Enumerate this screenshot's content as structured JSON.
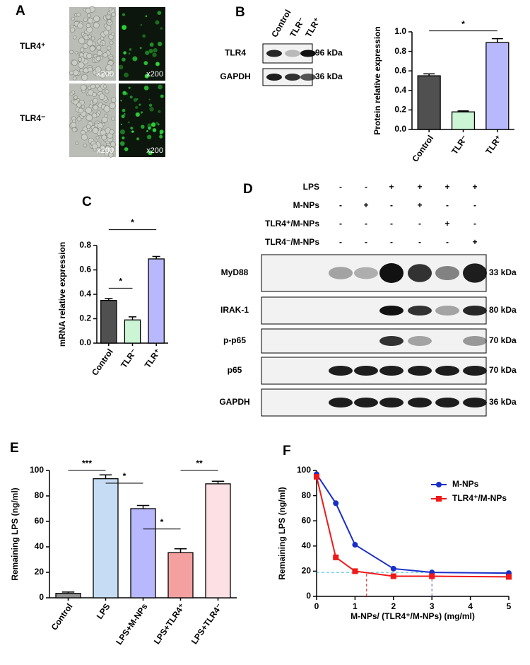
{
  "panels": {
    "A": {
      "letter": "A",
      "rows": [
        "TLR4⁺",
        "TLR4⁻"
      ],
      "magnifications": [
        "x200",
        "x200",
        "x200",
        "x200"
      ]
    },
    "B": {
      "letter": "B",
      "lanes": [
        "Control",
        "TLR⁻",
        "TLR⁺"
      ],
      "rows": [
        {
          "label": "TLR4",
          "size": "96 kDa"
        },
        {
          "label": "GAPDH",
          "size": "36 kDa"
        }
      ]
    },
    "C": {
      "letter": "C"
    },
    "D": {
      "letter": "D",
      "treatments": [
        {
          "label": "LPS",
          "signs": [
            "-",
            "-",
            "+",
            "+",
            "+",
            "+"
          ]
        },
        {
          "label": "M-NPs",
          "signs": [
            "-",
            "+",
            "-",
            "+",
            "-",
            "-"
          ]
        },
        {
          "label": "TLR4⁺/M-NPs",
          "signs": [
            "-",
            "-",
            "-",
            "-",
            "+",
            "-"
          ]
        },
        {
          "label": "TLR4⁻/M-NPs",
          "signs": [
            "-",
            "-",
            "-",
            "-",
            "-",
            "+"
          ]
        }
      ],
      "blots": [
        {
          "label": "MyD88",
          "size": "33 kDa"
        },
        {
          "label": "IRAK-1",
          "size": "80 kDa"
        },
        {
          "label": "p-p65",
          "size": "70 kDa"
        },
        {
          "label": "p65",
          "size": "70 kDa"
        },
        {
          "label": "GAPDH",
          "size": "36 kDa"
        }
      ]
    },
    "E": {
      "letter": "E"
    },
    "F": {
      "letter": "F"
    }
  },
  "chart_data": [
    {
      "type": "bar",
      "y_label": "Protein relative expression",
      "categories": [
        "Control",
        "TLR⁻",
        "TLR⁺"
      ],
      "values": [
        0.55,
        0.18,
        0.89
      ],
      "errors": [
        0.02,
        0.01,
        0.04
      ],
      "colors": [
        "#505050",
        "#ccf5d6",
        "#b8b8ff"
      ],
      "ylim": [
        0,
        1
      ],
      "yticks": [
        {
          "value": 0,
          "label": "0.0"
        },
        0.2,
        0.4,
        0.6,
        0.8,
        {
          "value": 1,
          "label": "1.0"
        }
      ],
      "significance": [
        {
          "from": 0,
          "to": 2,
          "y": 1.01,
          "label": "*"
        }
      ]
    },
    {
      "type": "bar",
      "y_label": "mRNA relative expression",
      "categories": [
        "Control",
        "TLR⁻",
        "TLR⁺"
      ],
      "values": [
        0.35,
        0.19,
        0.69
      ],
      "errors": [
        0.015,
        0.025,
        0.02
      ],
      "colors": [
        "#505050",
        "#ccf5d6",
        "#b8b8ff"
      ],
      "ylim": [
        0,
        0.8
      ],
      "yticks": [
        {
          "value": 0,
          "label": "0.0"
        },
        0.2,
        0.4,
        0.6,
        0.8
      ],
      "significance": [
        {
          "from": 0,
          "to": 1,
          "y": 0.45,
          "label": "*"
        },
        {
          "from": 0,
          "to": 2,
          "y": 0.93,
          "label": "*"
        }
      ]
    },
    {
      "type": "bar",
      "y_label": "Remaining LPS (ng/ml)",
      "categories": [
        "Control",
        "LPS",
        "LPS+M-NPs",
        "LPS+TLR4⁺",
        "LPS+TLR4⁻"
      ],
      "values": [
        3.5,
        93.5,
        70,
        35.5,
        89.5
      ],
      "errors": [
        1,
        3,
        2.5,
        3,
        2
      ],
      "colors": [
        "#909090",
        "#c6dcf5",
        "#b8b8ff",
        "#f5a0a0",
        "#fde0e4"
      ],
      "ylim": [
        0,
        100
      ],
      "yticks": [
        0,
        20,
        40,
        60,
        80,
        100
      ],
      "significance": [
        {
          "from": 0,
          "to": 1,
          "y": 100,
          "label": "***"
        },
        {
          "from": 1,
          "to": 2,
          "y": 90,
          "label": "*"
        },
        {
          "from": 2,
          "to": 3,
          "y": 54,
          "label": "*"
        },
        {
          "from": 3,
          "to": 4,
          "y": 100,
          "label": "**"
        }
      ]
    },
    {
      "type": "line",
      "x_label": "M-NPs/ (TLR4⁺/M-NPs) (mg/ml)",
      "y_label": "Remaining LPS (ng/ml)",
      "x": [
        0,
        0.5,
        1,
        2,
        3,
        5
      ],
      "series": [
        {
          "name": "M-NPs",
          "color": "#1a2fc8",
          "marker": "circle",
          "values": [
            97,
            74,
            41,
            22,
            19,
            18.5
          ]
        },
        {
          "name": "TLR4⁺/M-NPs",
          "color": "#f01818",
          "marker": "square",
          "values": [
            95,
            31,
            20,
            16,
            16,
            15.5
          ]
        }
      ],
      "xlim": [
        0,
        5
      ],
      "xticks": [
        0,
        1,
        2,
        3,
        4,
        5
      ],
      "ylim": [
        0,
        100
      ],
      "yticks": [
        0,
        20,
        40,
        60,
        80,
        100
      ],
      "hlines": [
        {
          "y": 19,
          "x": [
            0,
            3
          ],
          "color": "#33bbdd"
        }
      ],
      "vlines": [
        {
          "x": 1.3,
          "y": [
            0,
            19
          ],
          "color": "#f01818"
        },
        {
          "x": 3,
          "y": [
            0,
            19
          ],
          "color": "#6a4cc8"
        }
      ],
      "legend": "top-right"
    }
  ]
}
